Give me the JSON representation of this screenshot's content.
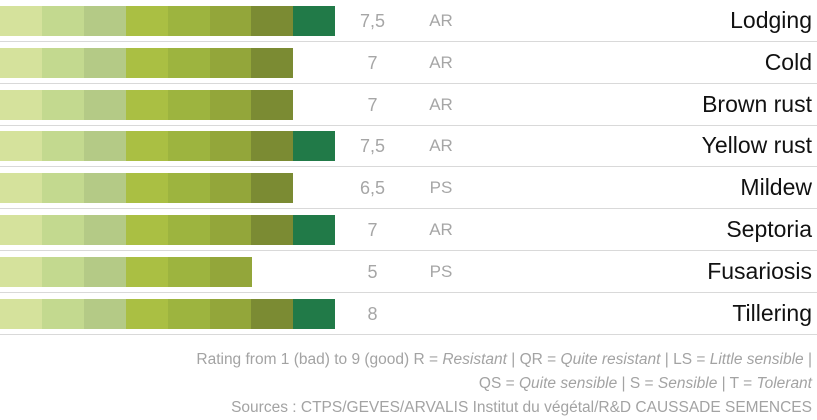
{
  "rows": [
    {
      "label": "Lodging",
      "rating": "7,5",
      "code": "AR",
      "segments": 8
    },
    {
      "label": "Cold",
      "rating": "7",
      "code": "AR",
      "segments": 7
    },
    {
      "label": "Brown rust",
      "rating": "7",
      "code": "AR",
      "segments": 7
    },
    {
      "label": "Yellow rust",
      "rating": "7,5",
      "code": "AR",
      "segments": 8
    },
    {
      "label": "Mildew",
      "rating": "6,5",
      "code": "PS",
      "segments": 7
    },
    {
      "label": "Septoria",
      "rating": "7",
      "code": "AR",
      "segments": 8
    },
    {
      "label": "Fusariosis",
      "rating": "5",
      "code": "PS",
      "segments": 6
    },
    {
      "label": "Tillering",
      "rating": "8",
      "segments": 8
    }
  ],
  "palette": [
    "#d5e29c",
    "#c3d98f",
    "#b4ca86",
    "#aabf43",
    "#9db43f",
    "#93a63a",
    "#7b8b33",
    "#217a48"
  ],
  "legend": [
    [
      {
        "text": "Rating from 1 (bad) to 9 (good) R = "
      },
      {
        "text": "Resistant",
        "italic": true
      },
      {
        "text": " | QR = "
      },
      {
        "text": "Quite resistant",
        "italic": true
      },
      {
        "text": " | LS = "
      },
      {
        "text": "Little sensible",
        "italic": true
      },
      {
        "text": " |"
      }
    ],
    [
      {
        "text": "QS = "
      },
      {
        "text": "Quite sensible",
        "italic": true
      },
      {
        "text": " | S = "
      },
      {
        "text": "Sensible",
        "italic": true
      },
      {
        "text": " | T = "
      },
      {
        "text": "Tolerant",
        "italic": true
      }
    ],
    [
      {
        "text": "Sources : CTPS/GEVES/ARVALIS Institut du végétal/R&D CAUSSADE SEMENCES"
      }
    ]
  ]
}
